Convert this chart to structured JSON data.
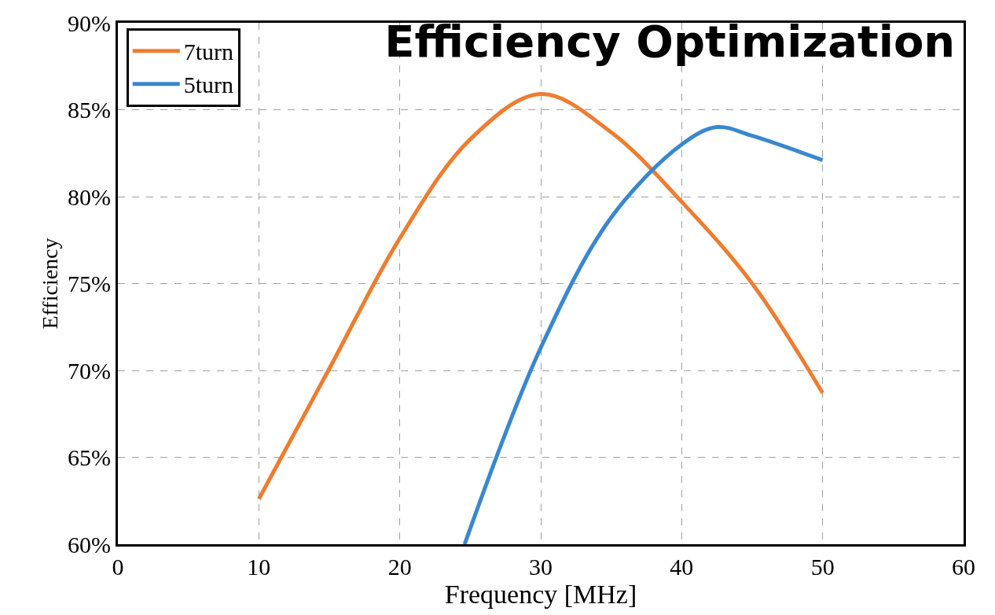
{
  "chart_data": {
    "type": "line",
    "title": "Efficiency Optimization",
    "xlabel": "Frequency [MHz]",
    "ylabel": "Efficiency",
    "xlim": [
      0,
      60
    ],
    "xticks": [
      0,
      10,
      20,
      30,
      40,
      50,
      60
    ],
    "ylim": [
      60,
      90
    ],
    "yticks": [
      {
        "value": 60,
        "label": "60%"
      },
      {
        "value": 65,
        "label": "65%"
      },
      {
        "value": 70,
        "label": "70%"
      },
      {
        "value": 75,
        "label": "75%"
      },
      {
        "value": 80,
        "label": "80%"
      },
      {
        "value": 85,
        "label": "85%"
      },
      {
        "value": 90,
        "label": "90%"
      }
    ],
    "grid": true,
    "legend": "top left",
    "marker": "none",
    "line_style": "solid",
    "series": [
      {
        "name": "7turn",
        "color": "#ed7d31",
        "x": [
          10,
          15,
          20,
          25,
          30,
          35,
          40,
          45,
          50
        ],
        "values": [
          62.6,
          70.1,
          77.6,
          83.3,
          85.9,
          83.7,
          79.7,
          75.0,
          68.7
        ]
      },
      {
        "name": "5turn",
        "color": "#3a87d0",
        "x": [
          24.6,
          30,
          35,
          40,
          42.5,
          45,
          50
        ],
        "values": [
          60,
          71.3,
          78.8,
          83.0,
          84.0,
          83.5,
          82.1
        ]
      }
    ]
  }
}
